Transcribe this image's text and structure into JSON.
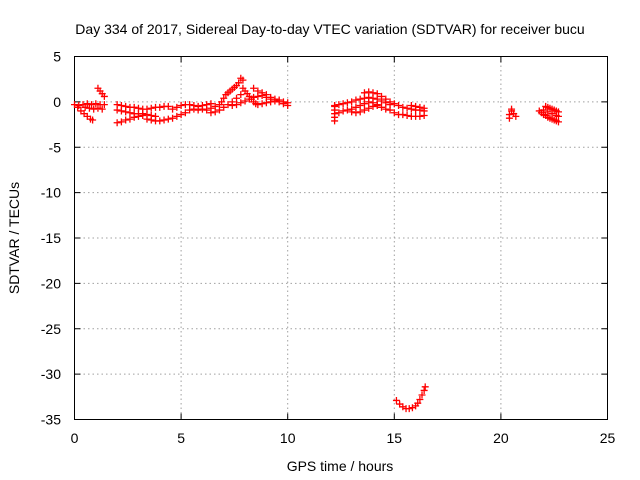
{
  "chart_data": {
    "type": "scatter",
    "title": "Day 334 of 2017, Sidereal Day-to-day VTEC variation (SDTVAR) for receiver bucu",
    "xlabel": "GPS time / hours",
    "ylabel": "SDTVAR / TECUs",
    "xlim": [
      0,
      25
    ],
    "ylim": [
      -35,
      5
    ],
    "xticks": [
      0,
      5,
      10,
      15,
      20,
      25
    ],
    "yticks": [
      5,
      0,
      -5,
      -10,
      -15,
      -20,
      -25,
      -30,
      -35
    ],
    "xtick_labels": [
      "0",
      "5",
      "10",
      "15",
      "20",
      "25"
    ],
    "ytick_labels": [
      "5",
      "0",
      "-5",
      "-10",
      "-15",
      "-20",
      "-25",
      "-30",
      "-35"
    ],
    "grid": true,
    "marker": "plus",
    "color": "#ff0000",
    "series": [
      {
        "name": "SDTVAR",
        "points": [
          [
            0.0,
            -0.3
          ],
          [
            0.15,
            -0.6
          ],
          [
            0.3,
            -1.0
          ],
          [
            0.45,
            -1.3
          ],
          [
            0.6,
            -1.6
          ],
          [
            0.75,
            -1.9
          ],
          [
            0.85,
            -2.0
          ],
          [
            0.2,
            -0.4
          ],
          [
            0.4,
            -0.3
          ],
          [
            0.6,
            -0.2
          ],
          [
            0.8,
            -0.3
          ],
          [
            1.0,
            -0.2
          ],
          [
            1.2,
            -0.3
          ],
          [
            1.4,
            -0.3
          ],
          [
            0.5,
            -0.6
          ],
          [
            0.7,
            -0.7
          ],
          [
            0.9,
            -0.8
          ],
          [
            1.1,
            -0.7
          ],
          [
            1.3,
            -0.8
          ],
          [
            1.1,
            1.5
          ],
          [
            1.2,
            1.2
          ],
          [
            1.3,
            0.9
          ],
          [
            1.4,
            0.6
          ],
          [
            2.0,
            -0.3
          ],
          [
            2.2,
            -0.4
          ],
          [
            2.4,
            -0.5
          ],
          [
            2.6,
            -0.6
          ],
          [
            2.8,
            -0.6
          ],
          [
            3.0,
            -0.7
          ],
          [
            3.2,
            -0.8
          ],
          [
            3.4,
            -0.8
          ],
          [
            3.6,
            -0.7
          ],
          [
            3.8,
            -0.6
          ],
          [
            4.0,
            -0.6
          ],
          [
            4.2,
            -0.5
          ],
          [
            4.4,
            -0.5
          ],
          [
            2.0,
            -0.9
          ],
          [
            2.2,
            -1.0
          ],
          [
            2.4,
            -1.1
          ],
          [
            2.6,
            -1.2
          ],
          [
            2.8,
            -1.3
          ],
          [
            3.0,
            -1.3
          ],
          [
            3.2,
            -1.3
          ],
          [
            3.4,
            -1.4
          ],
          [
            3.6,
            -1.5
          ],
          [
            3.8,
            -1.6
          ],
          [
            2.0,
            -2.3
          ],
          [
            2.2,
            -2.2
          ],
          [
            2.4,
            -2.0
          ],
          [
            2.6,
            -1.9
          ],
          [
            2.8,
            -1.7
          ],
          [
            3.0,
            -1.6
          ],
          [
            3.2,
            -1.5
          ],
          [
            3.4,
            -1.9
          ],
          [
            3.6,
            -2.0
          ],
          [
            3.8,
            -2.1
          ],
          [
            4.0,
            -2.1
          ],
          [
            4.2,
            -2.0
          ],
          [
            4.4,
            -1.9
          ],
          [
            4.6,
            -1.8
          ],
          [
            4.8,
            -1.6
          ],
          [
            5.0,
            -1.4
          ],
          [
            5.2,
            -1.2
          ],
          [
            4.6,
            -0.8
          ],
          [
            4.8,
            -0.6
          ],
          [
            5.0,
            -0.4
          ],
          [
            5.2,
            -0.3
          ],
          [
            5.4,
            -0.3
          ],
          [
            5.6,
            -0.4
          ],
          [
            5.8,
            -0.5
          ],
          [
            6.0,
            -0.4
          ],
          [
            6.2,
            -0.3
          ],
          [
            6.4,
            -0.2
          ],
          [
            5.4,
            -0.9
          ],
          [
            5.6,
            -0.8
          ],
          [
            5.8,
            -0.9
          ],
          [
            6.0,
            -0.8
          ],
          [
            6.2,
            -0.9
          ],
          [
            6.4,
            -0.7
          ],
          [
            6.6,
            -0.5
          ],
          [
            6.8,
            -0.3
          ],
          [
            6.4,
            -1.2
          ],
          [
            6.6,
            -1.1
          ],
          [
            6.8,
            -0.9
          ],
          [
            7.0,
            -0.6
          ],
          [
            7.2,
            -0.3
          ],
          [
            7.4,
            0.0
          ],
          [
            7.6,
            0.4
          ],
          [
            7.8,
            0.8
          ],
          [
            6.9,
            0.0
          ],
          [
            7.0,
            0.4
          ],
          [
            7.1,
            0.8
          ],
          [
            7.2,
            1.0
          ],
          [
            7.3,
            1.2
          ],
          [
            7.4,
            1.4
          ],
          [
            7.5,
            1.6
          ],
          [
            7.6,
            1.8
          ],
          [
            7.7,
            2.1
          ],
          [
            7.8,
            2.6
          ],
          [
            7.9,
            2.4
          ],
          [
            7.9,
            1.5
          ],
          [
            8.0,
            1.2
          ],
          [
            8.1,
            0.9
          ],
          [
            8.2,
            0.6
          ],
          [
            8.3,
            0.3
          ],
          [
            8.4,
            0.0
          ],
          [
            8.5,
            -0.2
          ],
          [
            7.4,
            -0.4
          ],
          [
            7.6,
            -0.3
          ],
          [
            7.8,
            -0.1
          ],
          [
            8.0,
            0.1
          ],
          [
            8.2,
            0.3
          ],
          [
            8.4,
            0.5
          ],
          [
            8.6,
            0.6
          ],
          [
            8.8,
            0.7
          ],
          [
            9.0,
            0.5
          ],
          [
            9.2,
            0.3
          ],
          [
            8.4,
            1.5
          ],
          [
            8.6,
            1.2
          ],
          [
            8.8,
            1.0
          ],
          [
            9.0,
            0.8
          ],
          [
            9.2,
            0.5
          ],
          [
            9.4,
            0.3
          ],
          [
            9.6,
            0.2
          ],
          [
            9.8,
            0.0
          ],
          [
            10.0,
            -0.1
          ],
          [
            8.6,
            -0.3
          ],
          [
            8.8,
            -0.2
          ],
          [
            9.0,
            -0.1
          ],
          [
            9.2,
            0.0
          ],
          [
            9.4,
            0.1
          ],
          [
            9.6,
            0.0
          ],
          [
            9.8,
            -0.2
          ],
          [
            10.0,
            -0.4
          ],
          [
            12.2,
            -0.5
          ],
          [
            12.2,
            -0.9
          ],
          [
            12.2,
            -1.3
          ],
          [
            12.2,
            -1.7
          ],
          [
            12.2,
            -2.1
          ],
          [
            12.2,
            -0.4
          ],
          [
            12.4,
            -0.3
          ],
          [
            12.6,
            -0.2
          ],
          [
            12.8,
            -0.1
          ],
          [
            13.0,
            0.0
          ],
          [
            13.2,
            0.2
          ],
          [
            13.4,
            0.3
          ],
          [
            13.6,
            0.4
          ],
          [
            13.8,
            0.5
          ],
          [
            14.0,
            0.4
          ],
          [
            14.2,
            0.3
          ],
          [
            14.4,
            0.1
          ],
          [
            14.6,
            -0.1
          ],
          [
            14.8,
            -0.3
          ],
          [
            12.4,
            -1.2
          ],
          [
            12.6,
            -1.0
          ],
          [
            12.8,
            -0.9
          ],
          [
            13.0,
            -0.8
          ],
          [
            13.2,
            -0.6
          ],
          [
            13.4,
            -0.4
          ],
          [
            13.6,
            -0.2
          ],
          [
            13.8,
            0.0
          ],
          [
            14.0,
            -0.1
          ],
          [
            14.2,
            -0.3
          ],
          [
            13.0,
            -1.1
          ],
          [
            13.2,
            -1.2
          ],
          [
            13.4,
            -1.1
          ],
          [
            13.6,
            -0.9
          ],
          [
            13.8,
            -0.7
          ],
          [
            14.0,
            -0.5
          ],
          [
            14.2,
            -0.4
          ],
          [
            14.4,
            -0.6
          ],
          [
            14.6,
            -0.8
          ],
          [
            14.8,
            -0.9
          ],
          [
            13.6,
            1.0
          ],
          [
            13.8,
            1.1
          ],
          [
            14.0,
            1.0
          ],
          [
            14.2,
            0.9
          ],
          [
            14.4,
            0.6
          ],
          [
            14.6,
            0.3
          ],
          [
            14.8,
            0.0
          ],
          [
            15.0,
            -0.2
          ],
          [
            15.2,
            -0.4
          ],
          [
            15.4,
            -0.6
          ],
          [
            15.6,
            -0.7
          ],
          [
            15.8,
            -0.8
          ],
          [
            16.0,
            -0.9
          ],
          [
            16.2,
            -0.9
          ],
          [
            16.4,
            -1.0
          ],
          [
            15.0,
            -1.2
          ],
          [
            15.2,
            -1.4
          ],
          [
            15.4,
            -1.4
          ],
          [
            15.6,
            -1.5
          ],
          [
            15.8,
            -1.6
          ],
          [
            16.0,
            -1.6
          ],
          [
            16.2,
            -1.6
          ],
          [
            16.4,
            -1.5
          ],
          [
            15.8,
            -0.4
          ],
          [
            16.0,
            -0.5
          ],
          [
            16.2,
            -0.6
          ],
          [
            16.4,
            -0.7
          ],
          [
            15.1,
            -32.9
          ],
          [
            15.25,
            -33.3
          ],
          [
            15.4,
            -33.6
          ],
          [
            15.55,
            -33.8
          ],
          [
            15.7,
            -33.8
          ],
          [
            15.85,
            -33.7
          ],
          [
            16.0,
            -33.5
          ],
          [
            16.1,
            -33.2
          ],
          [
            16.2,
            -32.8
          ],
          [
            16.3,
            -32.3
          ],
          [
            16.4,
            -31.8
          ],
          [
            16.45,
            -31.4
          ],
          [
            20.4,
            -1.8
          ],
          [
            20.4,
            -1.4
          ],
          [
            20.5,
            -1.0
          ],
          [
            20.5,
            -0.8
          ],
          [
            20.6,
            -1.3
          ],
          [
            20.7,
            -1.6
          ],
          [
            21.8,
            -1.0
          ],
          [
            21.9,
            -1.2
          ],
          [
            22.0,
            -1.4
          ],
          [
            22.1,
            -1.5
          ],
          [
            22.2,
            -1.7
          ],
          [
            22.3,
            -1.8
          ],
          [
            22.4,
            -1.9
          ],
          [
            22.5,
            -2.0
          ],
          [
            22.6,
            -2.1
          ],
          [
            22.7,
            -2.2
          ],
          [
            22.1,
            -0.5
          ],
          [
            22.2,
            -0.6
          ],
          [
            22.3,
            -0.7
          ],
          [
            22.4,
            -0.8
          ],
          [
            22.5,
            -0.9
          ],
          [
            22.6,
            -1.0
          ],
          [
            22.7,
            -1.1
          ],
          [
            22.0,
            -0.9
          ],
          [
            22.2,
            -1.1
          ],
          [
            22.4,
            -1.3
          ],
          [
            22.6,
            -1.5
          ],
          [
            22.7,
            -1.6
          ]
        ]
      }
    ]
  }
}
